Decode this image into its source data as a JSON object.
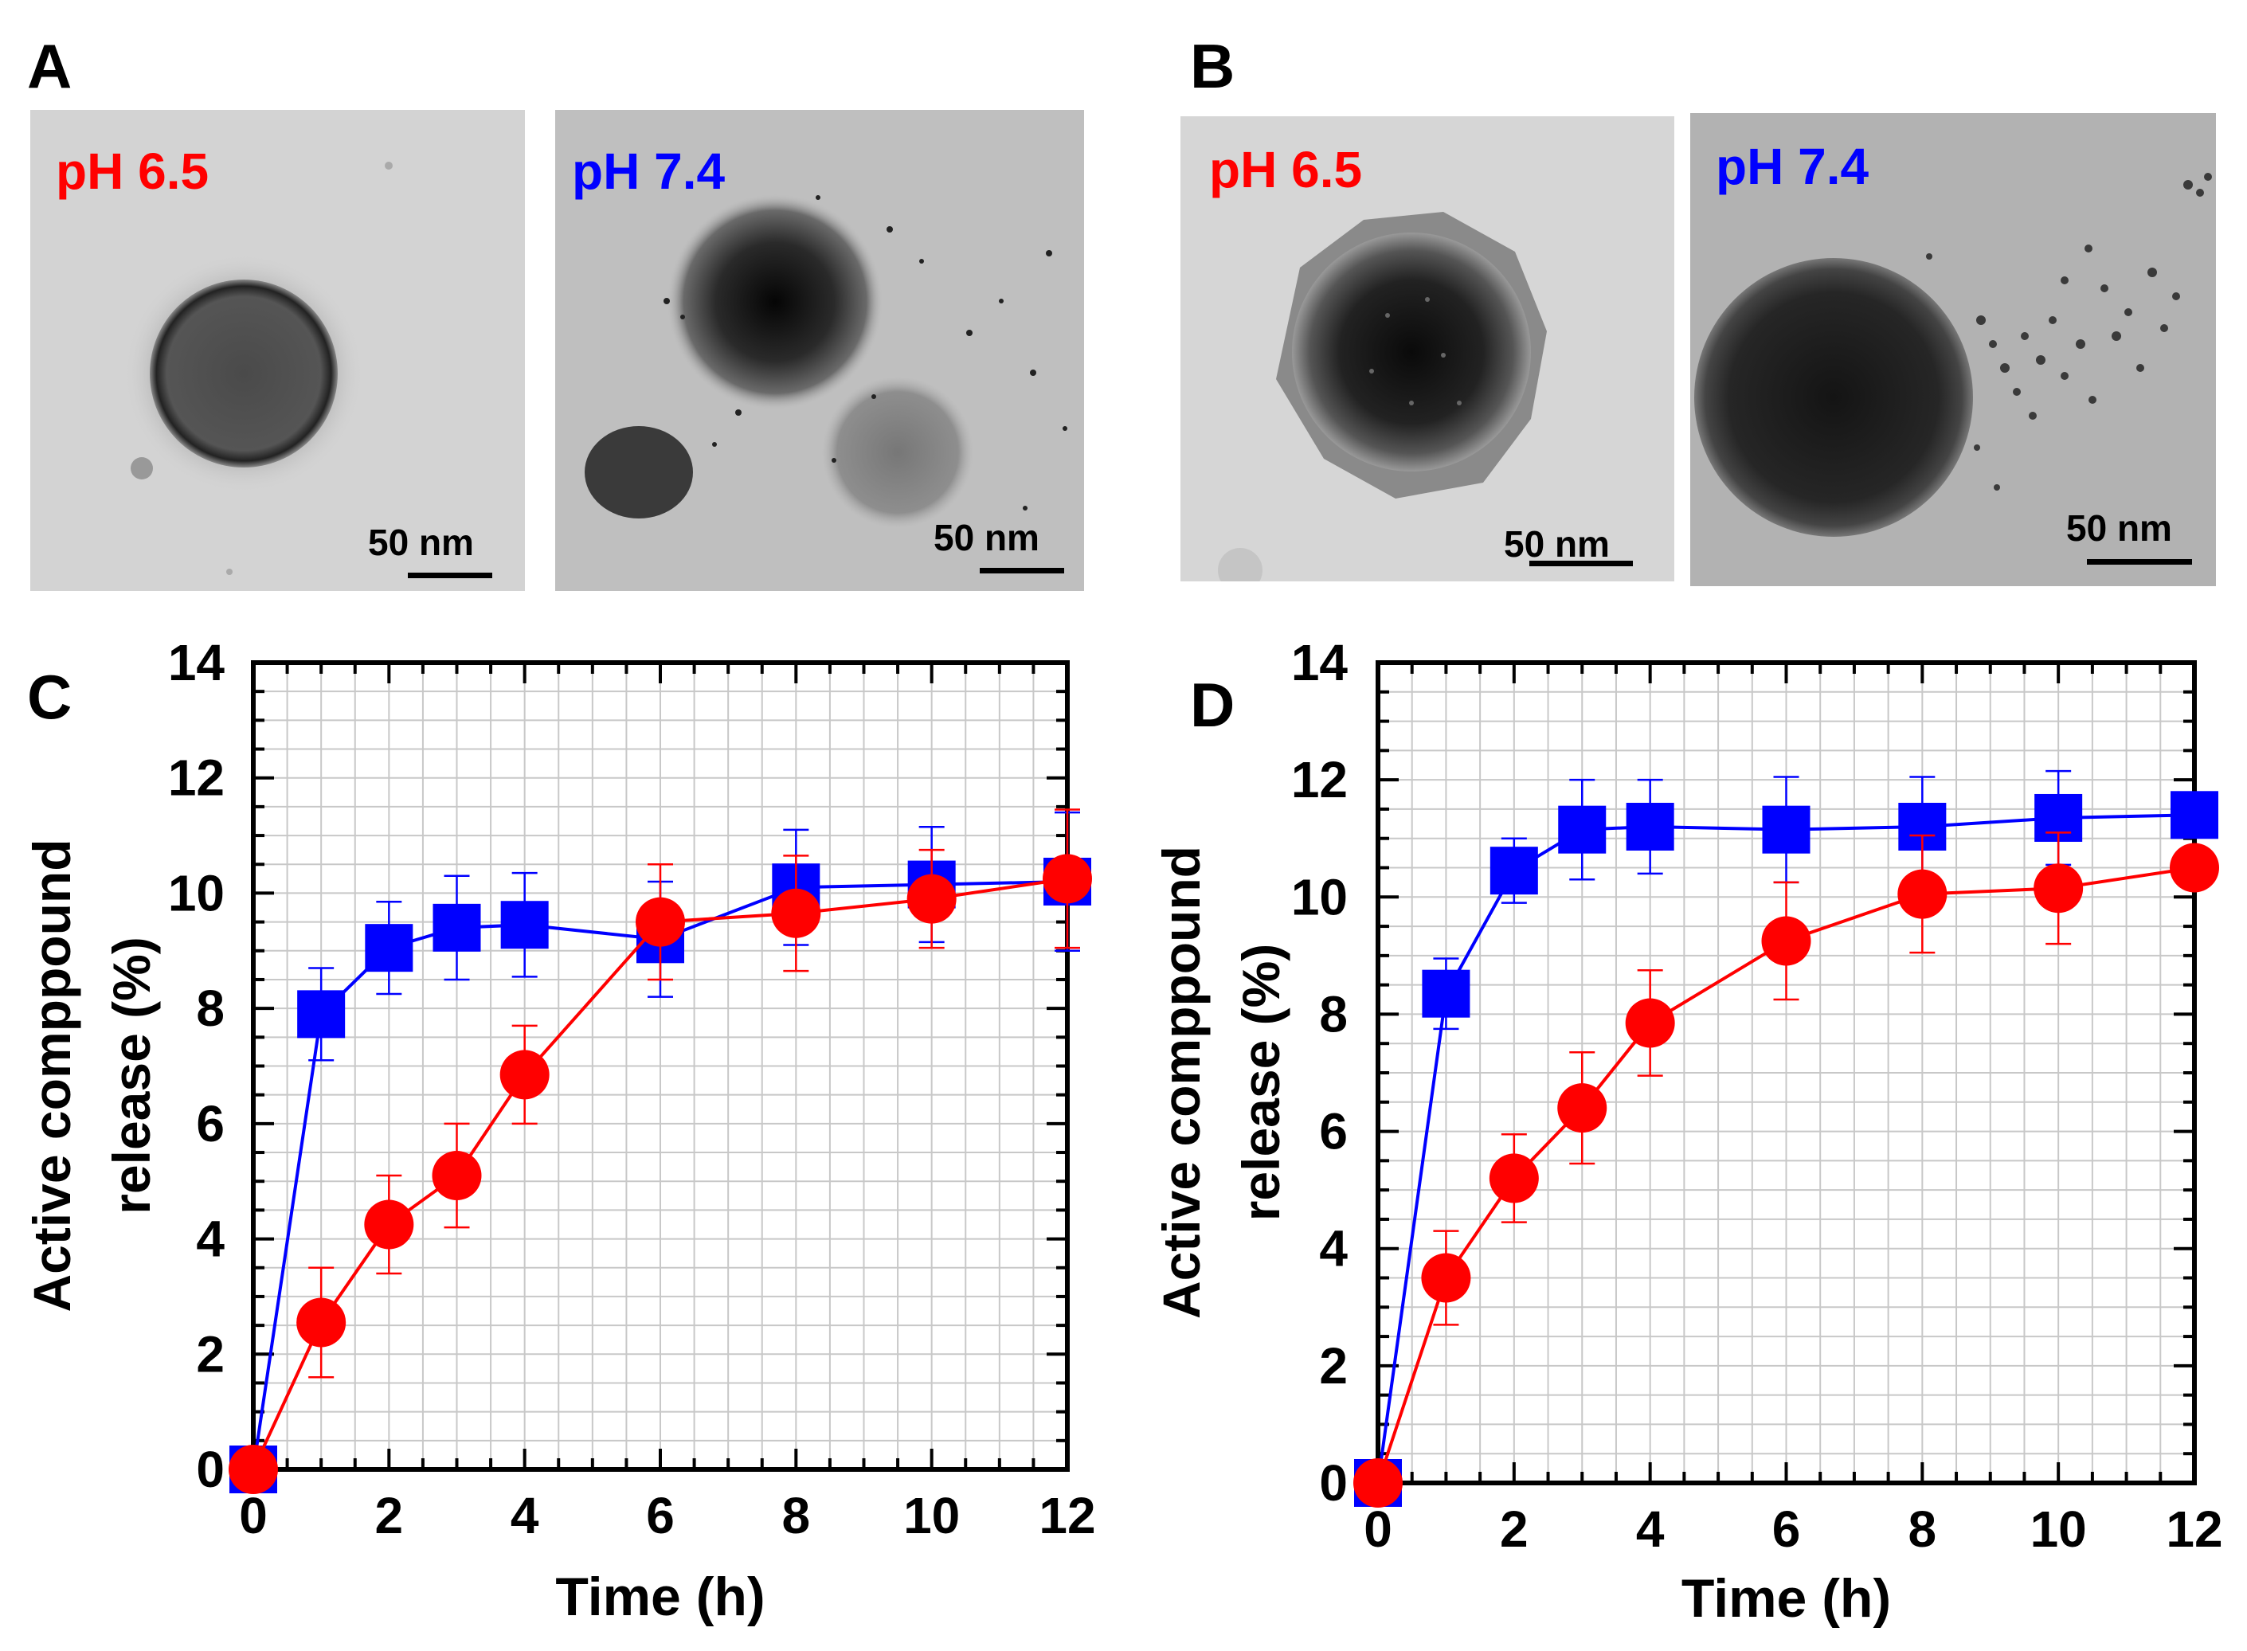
{
  "panels": {
    "A": {
      "letter": "A",
      "images": [
        {
          "ph_label": "pH 6.5",
          "ph_color": "#ff0000",
          "scale_label": "50 nm"
        },
        {
          "ph_label": "pH 7.4",
          "ph_color": "#0000ff",
          "scale_label": "50 nm"
        }
      ]
    },
    "B": {
      "letter": "B",
      "images": [
        {
          "ph_label": "pH 6.5",
          "ph_color": "#ff0000",
          "scale_label": "50 nm"
        },
        {
          "ph_label": "pH 7.4",
          "ph_color": "#0000ff",
          "scale_label": "50 nm"
        }
      ]
    },
    "C": {
      "letter": "C"
    },
    "D": {
      "letter": "D"
    }
  },
  "chart_data": [
    {
      "panel": "C",
      "type": "line",
      "xlabel": "Time (h)",
      "ylabel": [
        "Active comppound",
        "release (%)"
      ],
      "xlim": [
        0,
        12
      ],
      "ylim": [
        0,
        14
      ],
      "xticks": [
        0,
        2,
        4,
        6,
        8,
        10,
        12
      ],
      "yticks": [
        0,
        2,
        4,
        6,
        8,
        10,
        12,
        14
      ],
      "grid": true,
      "x": [
        0,
        1,
        2,
        3,
        4,
        6,
        8,
        10,
        12
      ],
      "series": [
        {
          "marker": "square",
          "color": "#0000ff",
          "values": [
            0,
            7.9,
            9.05,
            9.4,
            9.45,
            9.2,
            10.1,
            10.15,
            10.2
          ],
          "errors": [
            0,
            0.8,
            0.8,
            0.9,
            0.9,
            1.0,
            1.0,
            1.0,
            1.2
          ]
        },
        {
          "marker": "circle",
          "color": "#ff0000",
          "values": [
            0,
            2.55,
            4.25,
            5.1,
            6.85,
            9.5,
            9.65,
            9.9,
            10.25
          ],
          "errors": [
            0,
            0.95,
            0.85,
            0.9,
            0.85,
            1.0,
            1.0,
            0.85,
            1.2
          ]
        }
      ]
    },
    {
      "panel": "D",
      "type": "line",
      "xlabel": "Time (h)",
      "ylabel": [
        "Active comppound",
        "release (%)"
      ],
      "xlim": [
        0,
        12
      ],
      "ylim": [
        0,
        14
      ],
      "xticks": [
        0,
        2,
        4,
        6,
        8,
        10,
        12
      ],
      "yticks": [
        0,
        2,
        4,
        6,
        8,
        10,
        12,
        14
      ],
      "grid": true,
      "x": [
        0,
        1,
        2,
        3,
        4,
        6,
        8,
        10,
        12
      ],
      "series": [
        {
          "marker": "square",
          "color": "#0000ff",
          "values": [
            0,
            8.35,
            10.45,
            11.15,
            11.2,
            11.15,
            11.2,
            11.35,
            11.4
          ],
          "errors": [
            0,
            0.6,
            0.55,
            0.85,
            0.8,
            0.9,
            0.85,
            0.8,
            0
          ]
        },
        {
          "marker": "circle",
          "color": "#ff0000",
          "values": [
            0,
            3.5,
            5.2,
            6.4,
            7.85,
            9.25,
            10.05,
            10.15,
            10.5
          ],
          "errors": [
            0,
            0.8,
            0.75,
            0.95,
            0.9,
            1.0,
            1.0,
            0.95,
            0
          ]
        }
      ]
    }
  ]
}
